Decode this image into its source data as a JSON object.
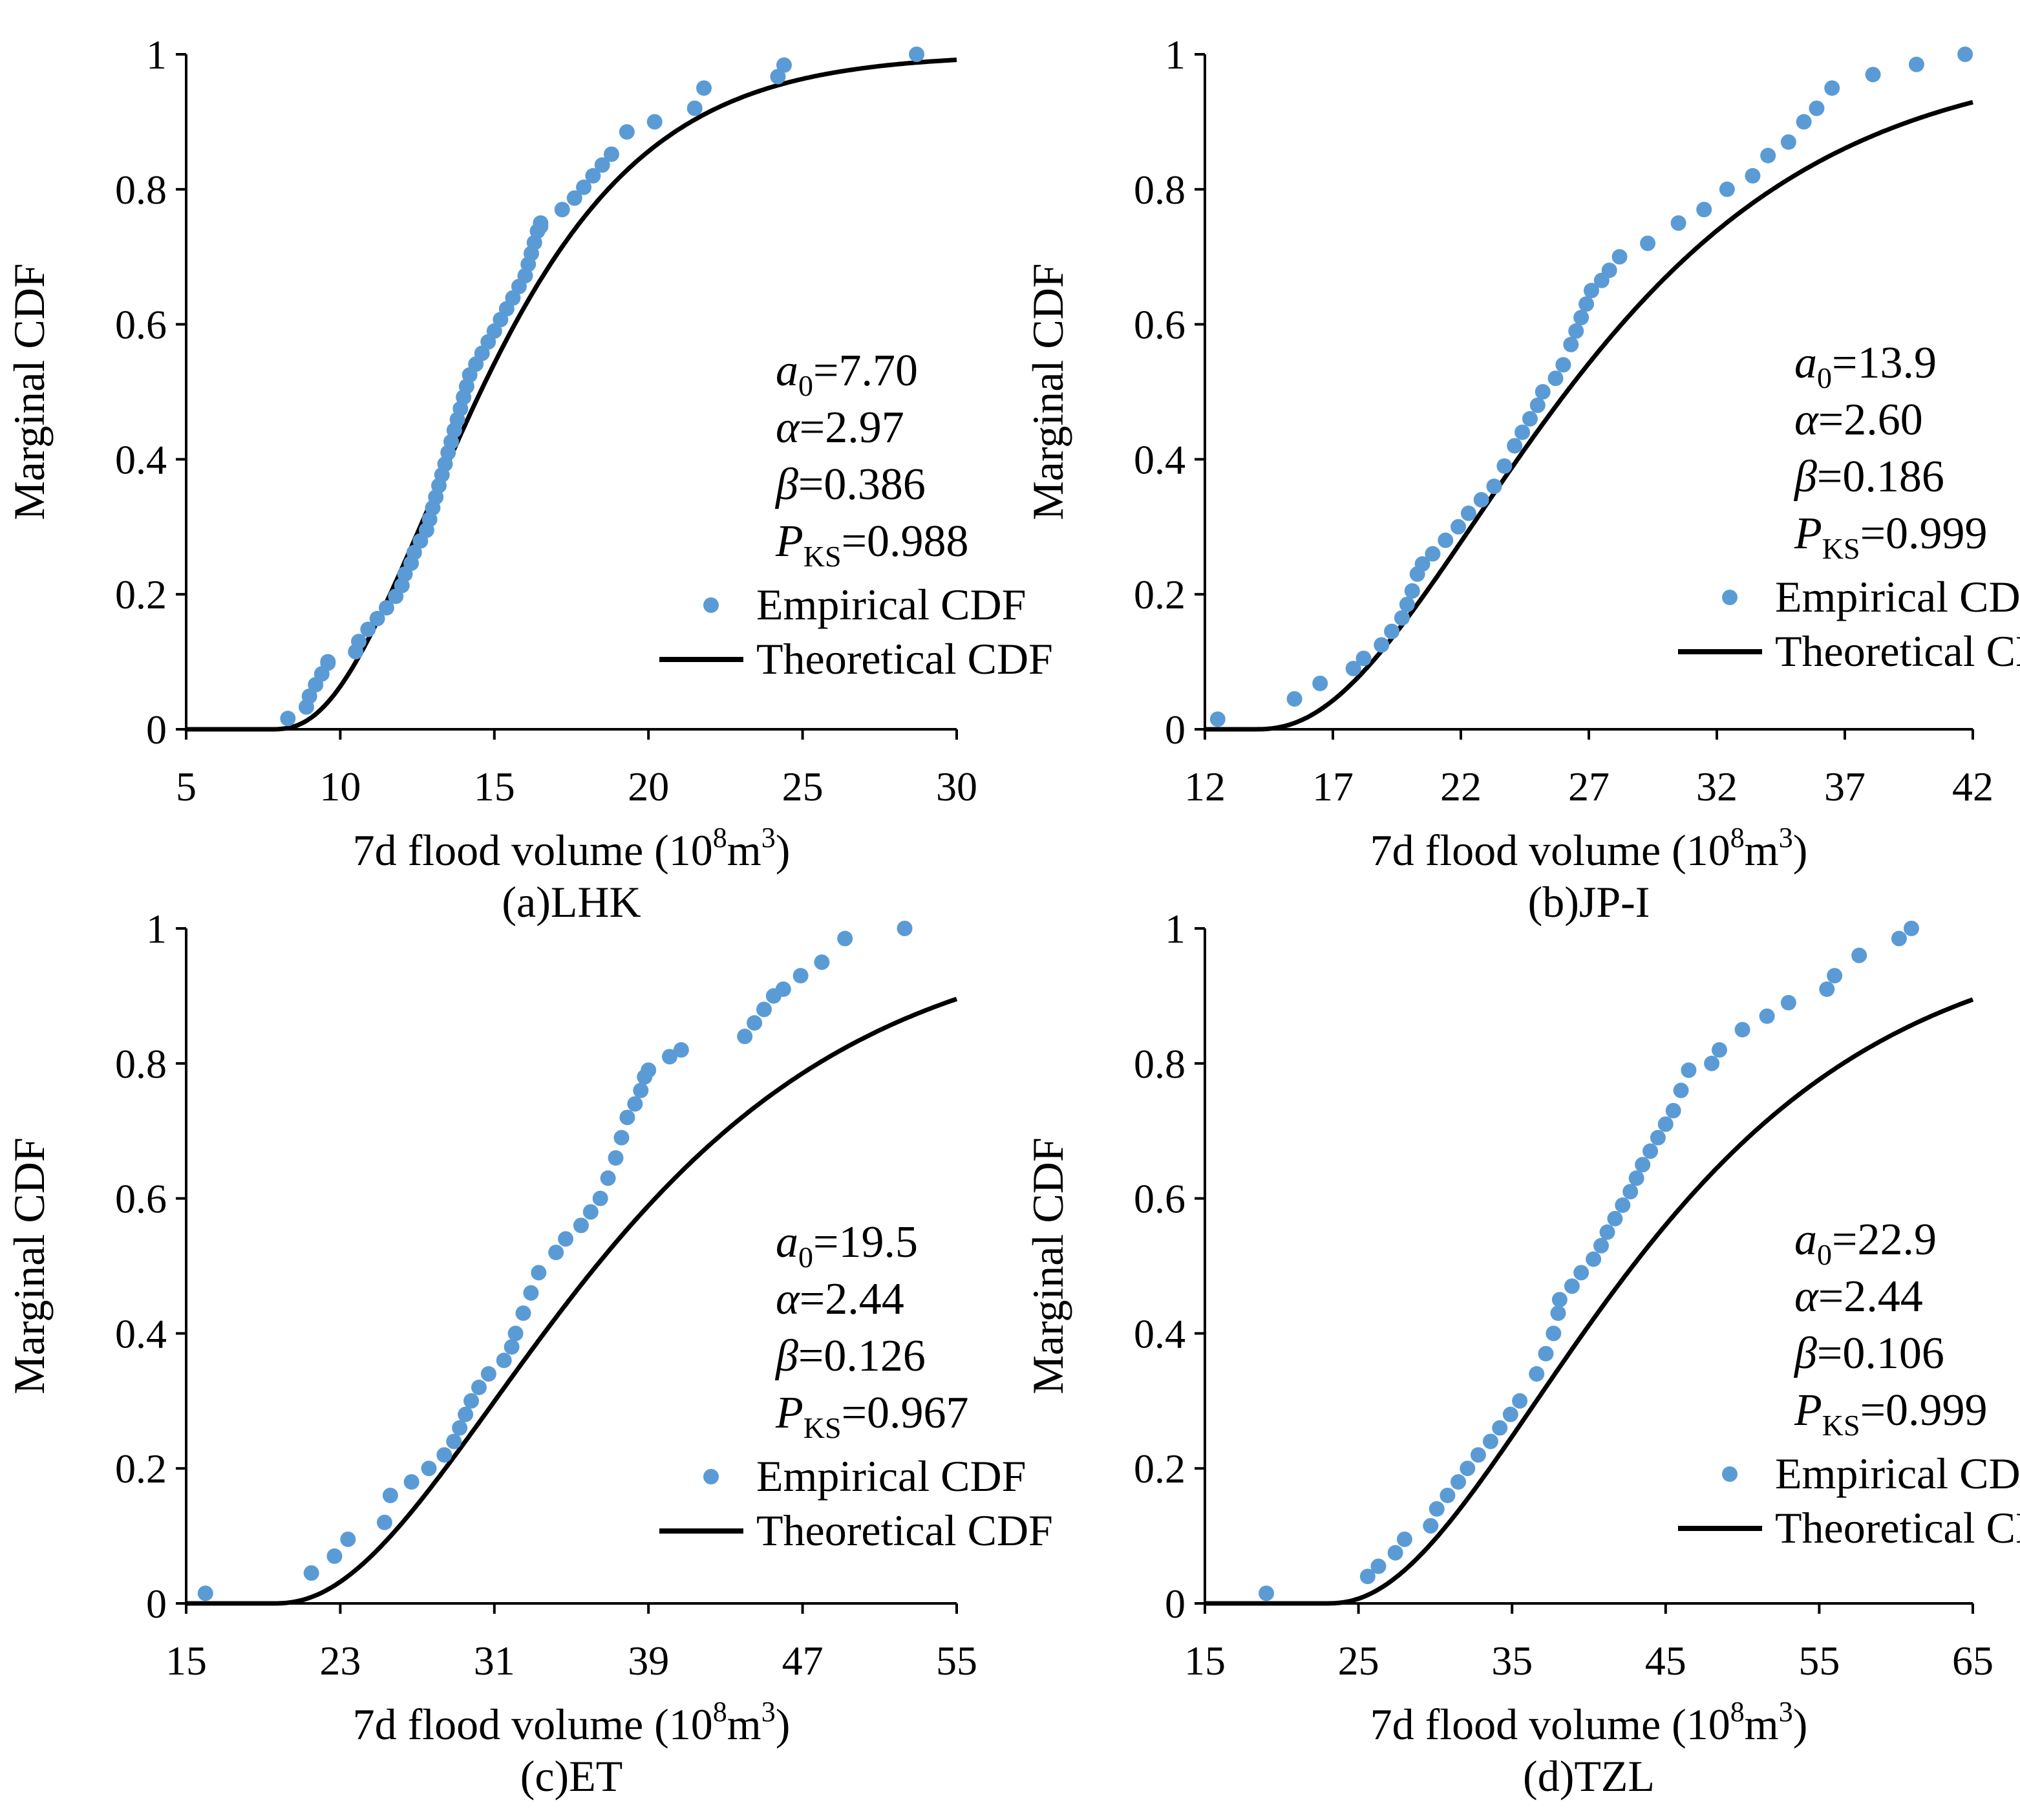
{
  "figure": {
    "empirical_color": "#5b9bd5",
    "theoretical_color": "#000000"
  },
  "chart_data": [
    {
      "type": "scatter",
      "panel_label": "(a)LHK",
      "xlabel": "7d flood volume (10",
      "xlabel_sup": "8",
      "xlabel_unit": "m",
      "xlabel_sup2": "3",
      "xlabel_close": ")",
      "ylabel": "Marginal CDF",
      "xlim": [
        5,
        30
      ],
      "ylim": [
        0,
        1
      ],
      "xticks": [
        "5",
        "10",
        "15",
        "20",
        "25",
        "30"
      ],
      "yticks": [
        "0",
        "0.2",
        "0.4",
        "0.6",
        "0.8",
        "1"
      ],
      "params": {
        "a0_sym": "a",
        "a0_sub": "0",
        "a0": "=7.70",
        "alpha_sym": "α",
        "alpha": "=2.97",
        "beta_sym": "β",
        "beta": "=0.386",
        "pks_sym": "P",
        "pks_sub": "KS",
        "pks": "=0.988"
      },
      "legend": {
        "empirical": "Empirical CDF",
        "theoretical": "Theoretical CDF"
      },
      "series": [
        {
          "name": "Empirical CDF",
          "x": [
            8.3,
            8.9,
            9.0,
            9.2,
            9.4,
            9.6,
            9.6,
            10.5,
            10.6,
            10.9,
            11.2,
            11.5,
            11.8,
            12.0,
            12.1,
            12.3,
            12.4,
            12.6,
            12.8,
            12.9,
            13.0,
            13.1,
            13.2,
            13.3,
            13.4,
            13.5,
            13.6,
            13.7,
            13.8,
            13.9,
            14.0,
            14.1,
            14.2,
            14.4,
            14.6,
            14.8,
            15.0,
            15.2,
            15.4,
            15.6,
            15.8,
            16.0,
            16.1,
            16.2,
            16.3,
            16.4,
            16.5,
            16.5,
            17.2,
            17.6,
            17.9,
            18.2,
            18.5,
            18.8,
            19.3,
            20.2,
            21.5,
            21.8,
            24.2,
            24.4,
            28.7
          ],
          "y": [
            0.016,
            0.033,
            0.049,
            0.066,
            0.082,
            0.098,
            0.1,
            0.115,
            0.13,
            0.148,
            0.164,
            0.18,
            0.197,
            0.213,
            0.23,
            0.246,
            0.262,
            0.279,
            0.295,
            0.311,
            0.328,
            0.344,
            0.361,
            0.377,
            0.393,
            0.41,
            0.426,
            0.443,
            0.459,
            0.475,
            0.492,
            0.508,
            0.525,
            0.541,
            0.557,
            0.574,
            0.59,
            0.607,
            0.623,
            0.639,
            0.656,
            0.672,
            0.689,
            0.705,
            0.721,
            0.738,
            0.745,
            0.75,
            0.77,
            0.787,
            0.803,
            0.82,
            0.836,
            0.852,
            0.885,
            0.9,
            0.92,
            0.95,
            0.967,
            0.984,
            1.0
          ]
        },
        {
          "name": "Theoretical CDF",
          "a0": 7.7,
          "alpha": 2.97,
          "beta": 0.386
        }
      ]
    },
    {
      "type": "scatter",
      "panel_label": "(b)JP-I",
      "xlabel": "7d flood volume (10",
      "xlabel_sup": "8",
      "xlabel_unit": "m",
      "xlabel_sup2": "3",
      "xlabel_close": ")",
      "ylabel": "Marginal CDF",
      "xlim": [
        12,
        42
      ],
      "ylim": [
        0,
        1
      ],
      "xticks": [
        "12",
        "17",
        "22",
        "27",
        "32",
        "37",
        "42"
      ],
      "yticks": [
        "0",
        "0.2",
        "0.4",
        "0.6",
        "0.8",
        "1"
      ],
      "params": {
        "a0_sym": "a",
        "a0_sub": "0",
        "a0": "=13.9",
        "alpha_sym": "α",
        "alpha": "=2.60",
        "beta_sym": "β",
        "beta": "=0.186",
        "pks_sym": "P",
        "pks_sub": "KS",
        "pks": "=0.999"
      },
      "legend": {
        "empirical": "Empirical CDF",
        "theoretical": "Theoretical CDF"
      },
      "series": [
        {
          "name": "Empirical CDF",
          "x": [
            12.5,
            15.5,
            16.5,
            17.8,
            18.2,
            18.9,
            19.3,
            19.7,
            19.9,
            20.1,
            20.3,
            20.5,
            20.9,
            21.4,
            21.9,
            22.3,
            22.8,
            23.3,
            23.7,
            24.1,
            24.4,
            24.7,
            25.0,
            25.2,
            25.7,
            26.0,
            26.3,
            26.5,
            26.7,
            26.9,
            27.1,
            27.5,
            27.8,
            28.2,
            29.3,
            30.5,
            31.5,
            32.4,
            33.4,
            34.0,
            34.8,
            35.4,
            35.9,
            36.5,
            38.1,
            39.8,
            41.7
          ],
          "y": [
            0.015,
            0.045,
            0.068,
            0.09,
            0.105,
            0.125,
            0.145,
            0.165,
            0.185,
            0.205,
            0.23,
            0.245,
            0.26,
            0.28,
            0.3,
            0.32,
            0.34,
            0.36,
            0.39,
            0.42,
            0.44,
            0.46,
            0.48,
            0.5,
            0.52,
            0.54,
            0.57,
            0.59,
            0.61,
            0.63,
            0.65,
            0.665,
            0.68,
            0.7,
            0.72,
            0.75,
            0.77,
            0.8,
            0.82,
            0.85,
            0.87,
            0.9,
            0.92,
            0.95,
            0.97,
            0.985,
            1.0
          ]
        },
        {
          "name": "Theoretical CDF",
          "a0": 13.9,
          "alpha": 2.6,
          "beta": 0.186
        }
      ]
    },
    {
      "type": "scatter",
      "panel_label": "(c)ET",
      "xlabel": "7d flood volume (10",
      "xlabel_sup": "8",
      "xlabel_unit": "m",
      "xlabel_sup2": "3",
      "xlabel_close": ")",
      "ylabel": "Marginal CDF",
      "xlim": [
        15,
        55
      ],
      "ylim": [
        0,
        1
      ],
      "xticks": [
        "15",
        "23",
        "31",
        "39",
        "47",
        "55"
      ],
      "yticks": [
        "0",
        "0.2",
        "0.4",
        "0.6",
        "0.8",
        "1"
      ],
      "params": {
        "a0_sym": "a",
        "a0_sub": "0",
        "a0": "=19.5",
        "alpha_sym": "α",
        "alpha": "=2.44",
        "beta_sym": "β",
        "beta": "=0.126",
        "pks_sym": "P",
        "pks_sub": "KS",
        "pks": "=0.967"
      },
      "legend": {
        "empirical": "Empirical CDF",
        "theoretical": "Theoretical CDF"
      },
      "series": [
        {
          "name": "Empirical CDF",
          "x": [
            16.0,
            21.5,
            22.7,
            23.4,
            25.3,
            25.6,
            26.7,
            27.6,
            28.4,
            28.9,
            29.2,
            29.5,
            29.8,
            30.2,
            30.7,
            31.5,
            31.9,
            32.1,
            32.5,
            32.9,
            33.3,
            34.2,
            34.7,
            35.5,
            36.0,
            36.5,
            36.9,
            37.3,
            37.6,
            37.9,
            38.3,
            38.6,
            38.8,
            39.0,
            40.1,
            40.7,
            44.0,
            44.5,
            45.0,
            45.5,
            46.0,
            46.9,
            48.0,
            49.2,
            52.3
          ],
          "y": [
            0.015,
            0.045,
            0.07,
            0.095,
            0.12,
            0.16,
            0.18,
            0.2,
            0.22,
            0.24,
            0.26,
            0.28,
            0.3,
            0.32,
            0.34,
            0.36,
            0.38,
            0.4,
            0.43,
            0.46,
            0.49,
            0.52,
            0.54,
            0.56,
            0.58,
            0.6,
            0.63,
            0.66,
            0.69,
            0.72,
            0.74,
            0.76,
            0.78,
            0.79,
            0.81,
            0.82,
            0.84,
            0.86,
            0.88,
            0.9,
            0.91,
            0.93,
            0.95,
            0.985,
            1.0
          ]
        },
        {
          "name": "Theoretical CDF",
          "a0": 19.5,
          "alpha": 2.44,
          "beta": 0.126
        }
      ]
    },
    {
      "type": "scatter",
      "panel_label": "(d)TZL",
      "xlabel": "7d flood volume (10",
      "xlabel_sup": "8",
      "xlabel_unit": "m",
      "xlabel_sup2": "3",
      "xlabel_close": ")",
      "ylabel": "Marginal CDF",
      "xlim": [
        15,
        65
      ],
      "ylim": [
        0,
        1
      ],
      "xticks": [
        "15",
        "25",
        "35",
        "45",
        "55",
        "65"
      ],
      "yticks": [
        "0",
        "0.2",
        "0.4",
        "0.6",
        "0.8",
        "1"
      ],
      "params": {
        "a0_sym": "a",
        "a0_sub": "0",
        "a0": "=22.9",
        "alpha_sym": "α",
        "alpha": "=2.44",
        "beta_sym": "β",
        "beta": "=0.106",
        "pks_sym": "P",
        "pks_sub": "KS",
        "pks": "=0.999"
      },
      "legend": {
        "empirical": "Empirical CDF",
        "theoretical": "Theoretical CDF"
      },
      "series": [
        {
          "name": "Empirical CDF",
          "x": [
            19.0,
            25.6,
            26.3,
            27.4,
            28.0,
            29.7,
            30.1,
            30.8,
            31.5,
            32.1,
            32.8,
            33.6,
            34.2,
            34.9,
            35.5,
            36.6,
            37.2,
            37.7,
            38.0,
            38.1,
            38.9,
            39.5,
            40.3,
            40.8,
            41.2,
            41.7,
            42.2,
            42.7,
            43.1,
            43.5,
            44.0,
            44.5,
            45.0,
            45.5,
            46.0,
            46.5,
            48.0,
            48.5,
            50.0,
            51.6,
            53.0,
            55.5,
            56.0,
            57.6,
            60.2,
            61.0
          ],
          "y": [
            0.015,
            0.04,
            0.055,
            0.075,
            0.095,
            0.115,
            0.14,
            0.16,
            0.18,
            0.2,
            0.22,
            0.24,
            0.26,
            0.28,
            0.3,
            0.34,
            0.37,
            0.4,
            0.43,
            0.45,
            0.47,
            0.49,
            0.51,
            0.53,
            0.55,
            0.57,
            0.59,
            0.61,
            0.63,
            0.65,
            0.67,
            0.69,
            0.71,
            0.73,
            0.76,
            0.79,
            0.8,
            0.82,
            0.85,
            0.87,
            0.89,
            0.91,
            0.93,
            0.96,
            0.985,
            1.0
          ]
        },
        {
          "name": "Theoretical CDF",
          "a0": 22.9,
          "alpha": 2.44,
          "beta": 0.106
        }
      ]
    }
  ]
}
